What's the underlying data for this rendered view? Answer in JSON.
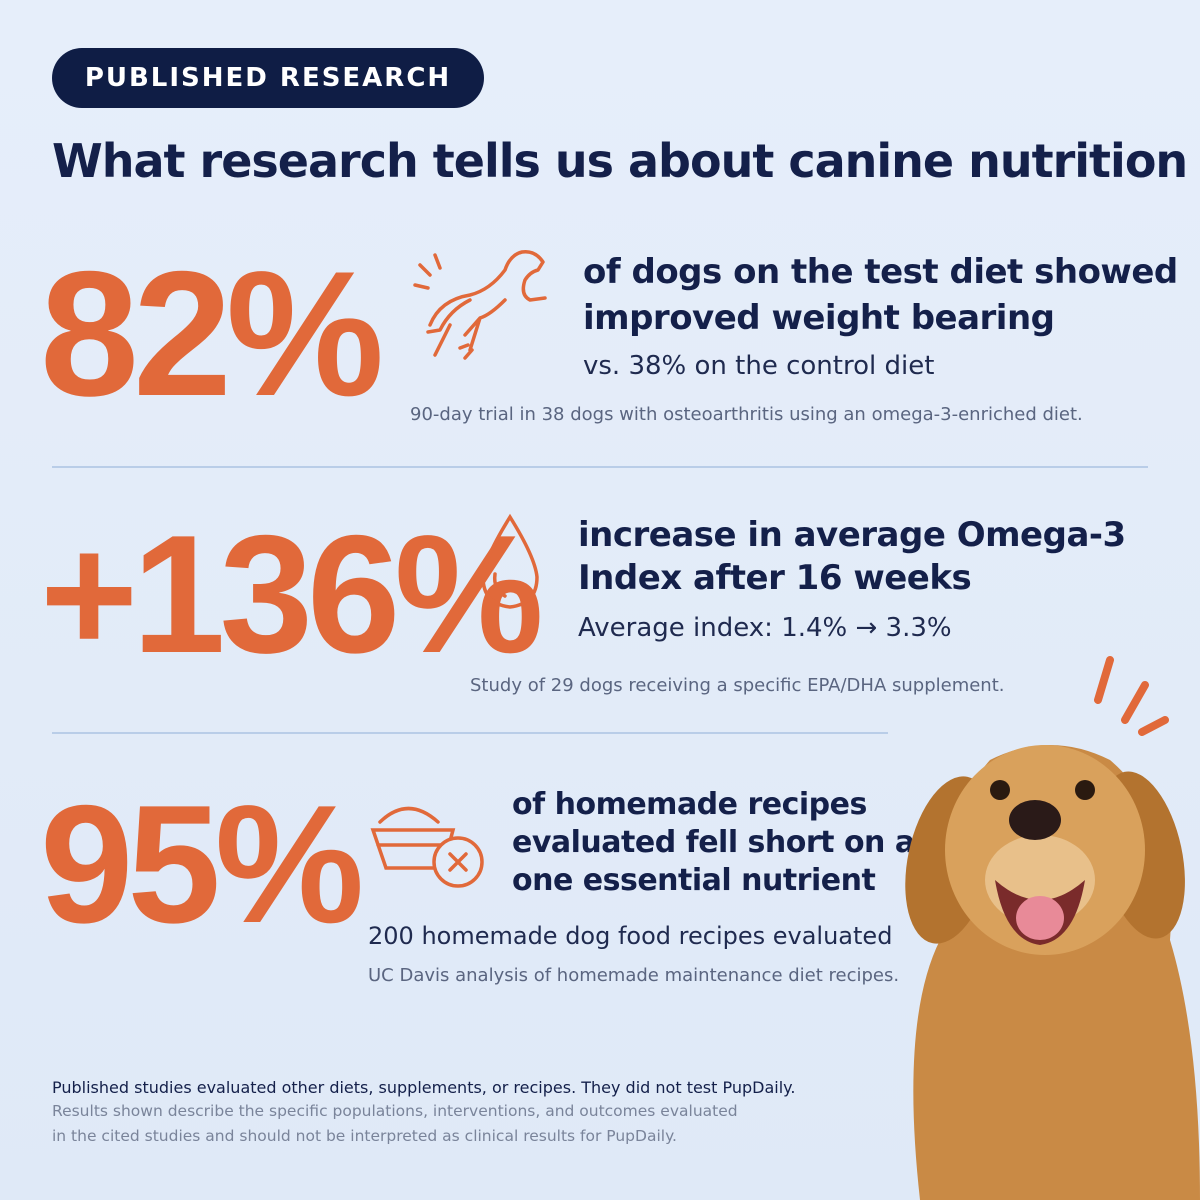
{
  "badge": "PUBLISHED RESEARCH",
  "title": "What research tells us about canine nutrition",
  "stats": [
    {
      "figure": "82%",
      "headline": [
        "of dogs on the test diet showed",
        "improved weight bearing"
      ],
      "detail": "vs. 38% on the control diet",
      "source": "90-day trial in 38 dogs with osteoarthritis using an omega-3-enriched diet."
    },
    {
      "figure": "+136%",
      "headline": [
        "increase in average Omega-3",
        "Index after 16 weeks"
      ],
      "detail": "Average index: 1.4% → 3.3%",
      "source": "Study of 29 dogs receiving a specific EPA/DHA supplement."
    },
    {
      "figure": "95%",
      "headline": [
        "of homemade recipes",
        "evaluated fell short on at least",
        "one essential nutrient"
      ],
      "detail": "200 homemade dog food recipes evaluated",
      "source": "UC Davis analysis of homemade maintenance diet recipes."
    }
  ],
  "footer": {
    "disclaimer": "Published studies evaluated other diets, supplements, or recipes. They did not test PupDaily.",
    "note": [
      "Results shown describe the specific populations, interventions, and outcomes evaluated",
      "in the cited studies and should not be interpreted as clinical results for PupDaily."
    ]
  }
}
